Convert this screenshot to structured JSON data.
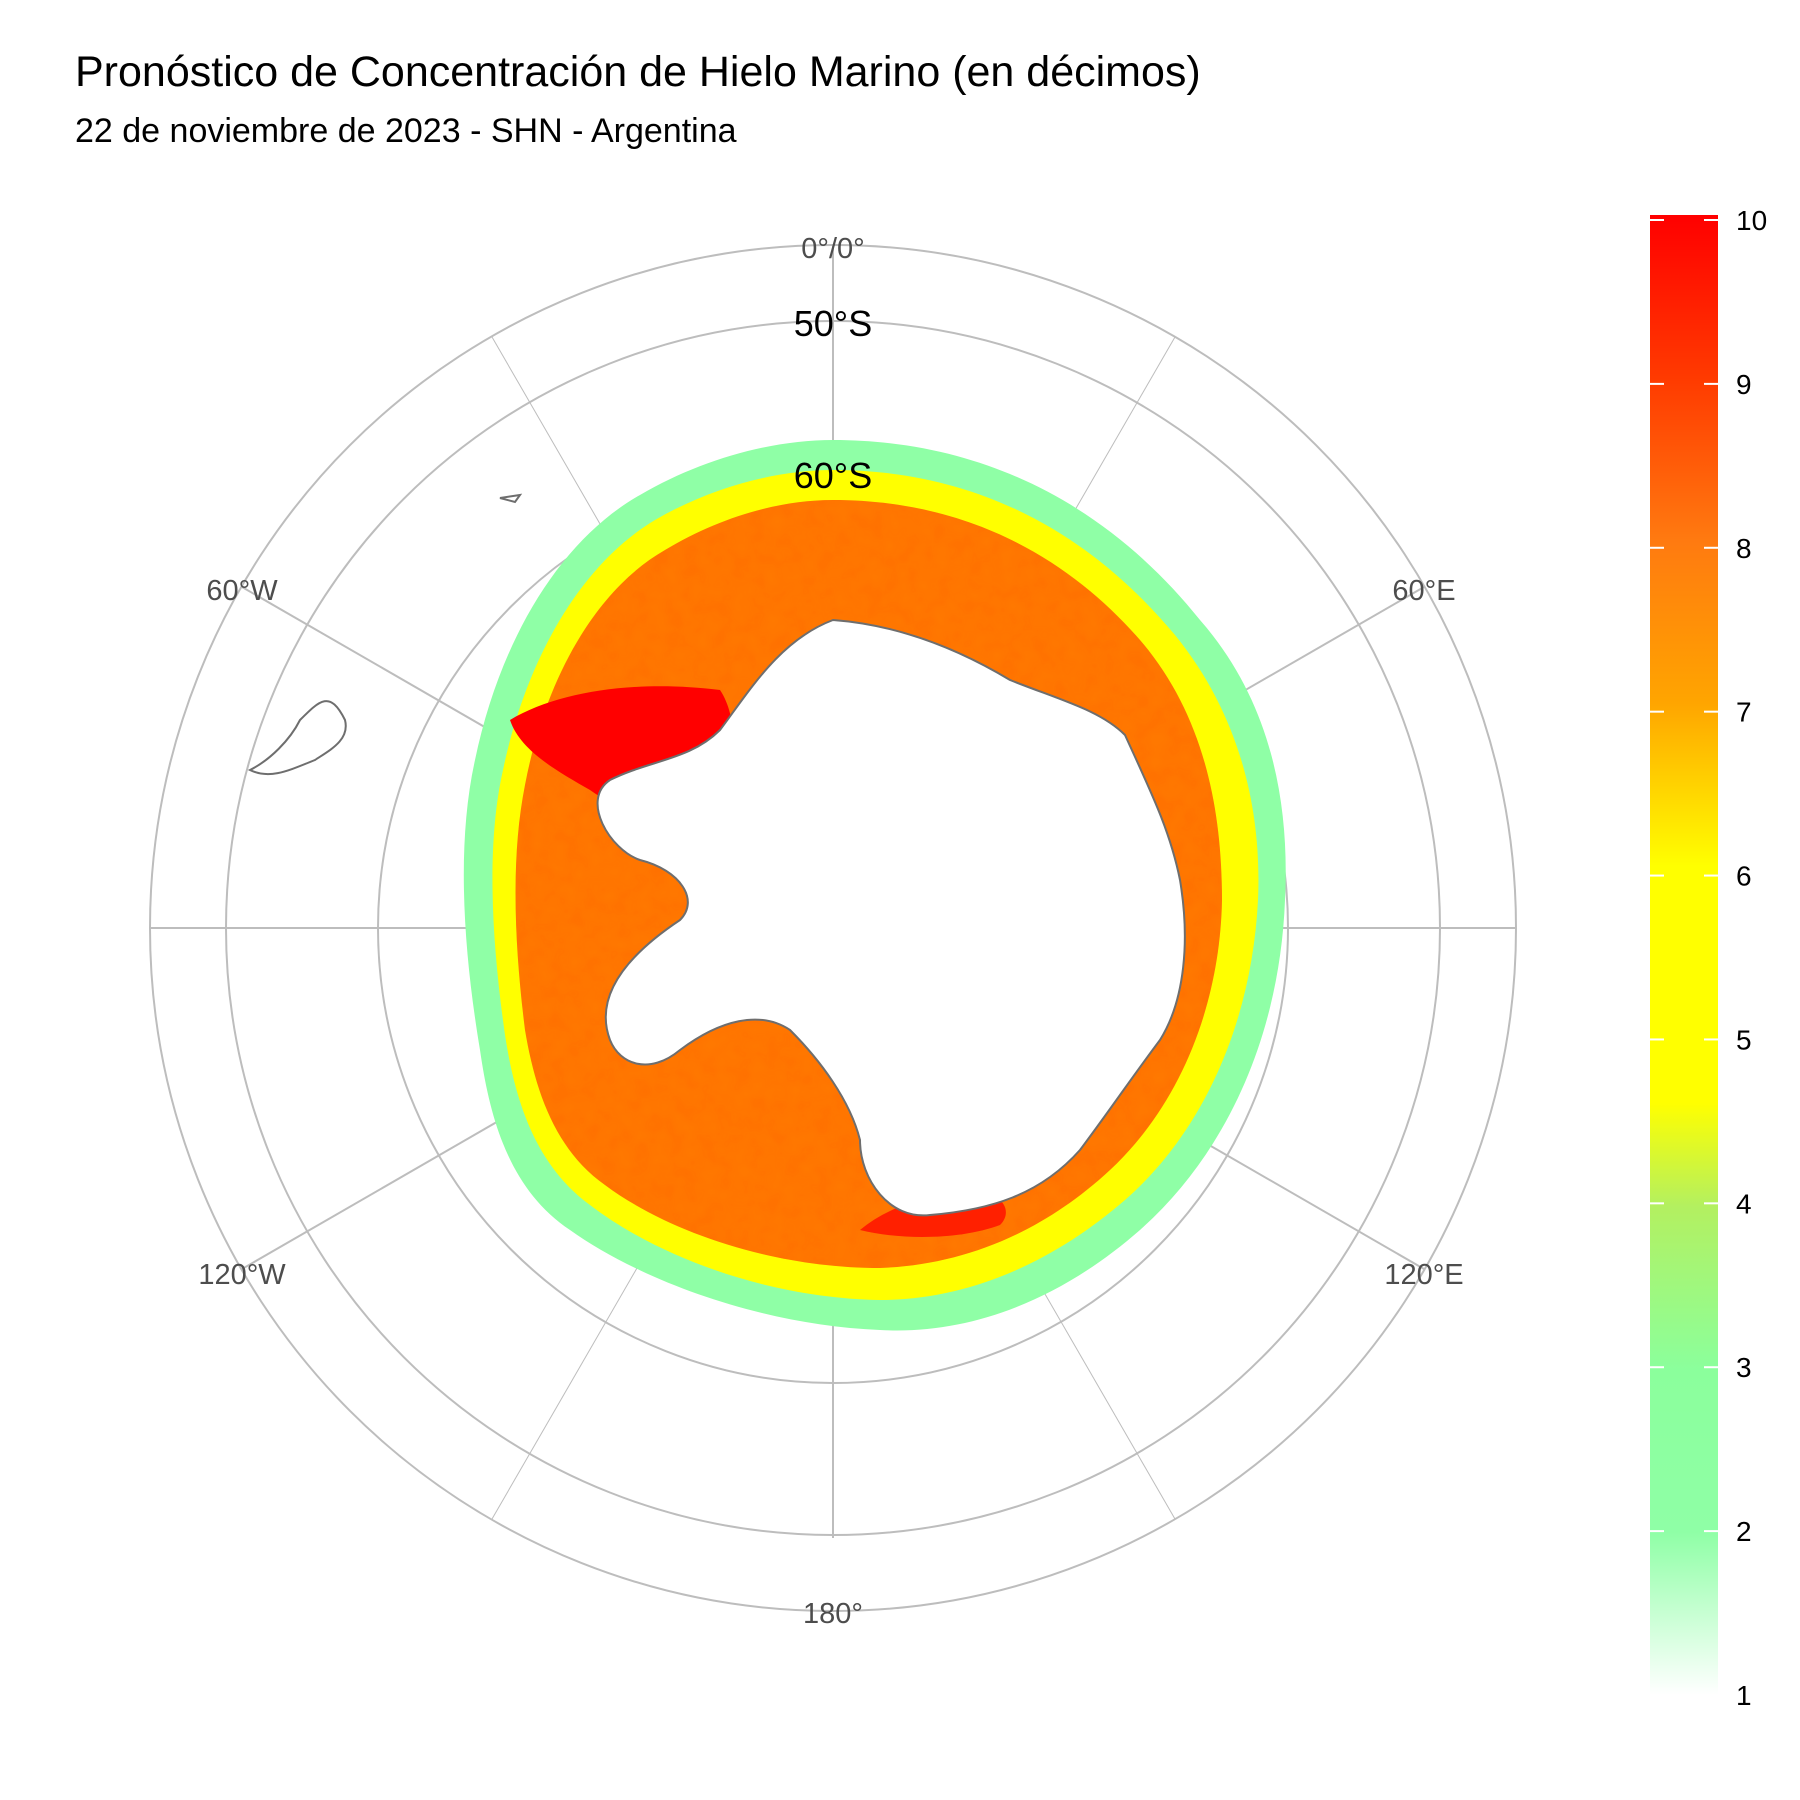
{
  "title": "Pronóstico de Concentración de Hielo Marino (en décimos)",
  "subtitle": "22 de noviembre de 2023 - SHN - Argentina",
  "map": {
    "projection": "south-polar-stereographic",
    "longitude_labels": [
      "0°/0°",
      "60°E",
      "120°E",
      "180°",
      "120°W",
      "60°W"
    ],
    "latitude_labels": [
      "50°S",
      "60°S"
    ],
    "grid_color": "#bdbdbd",
    "coastline_color": "#6e6e6e"
  },
  "legend": {
    "ticks": [
      "10",
      "9",
      "8",
      "7",
      "6",
      "5",
      "4",
      "3",
      "2",
      "1"
    ],
    "range": [
      1,
      10
    ],
    "colors": [
      {
        "value": 1,
        "color": "#ffffff"
      },
      {
        "value": 2,
        "color": "#8fffa6"
      },
      {
        "value": 3,
        "color": "#8bff9c"
      },
      {
        "value": 4,
        "color": "#b3f060"
      },
      {
        "value": 5,
        "color": "#ffff00"
      },
      {
        "value": 6,
        "color": "#ffff00"
      },
      {
        "value": 7,
        "color": "#ffa500"
      },
      {
        "value": 8,
        "color": "#ff7a10"
      },
      {
        "value": 9,
        "color": "#ff3a00"
      },
      {
        "value": 10,
        "color": "#ff0000"
      }
    ]
  }
}
